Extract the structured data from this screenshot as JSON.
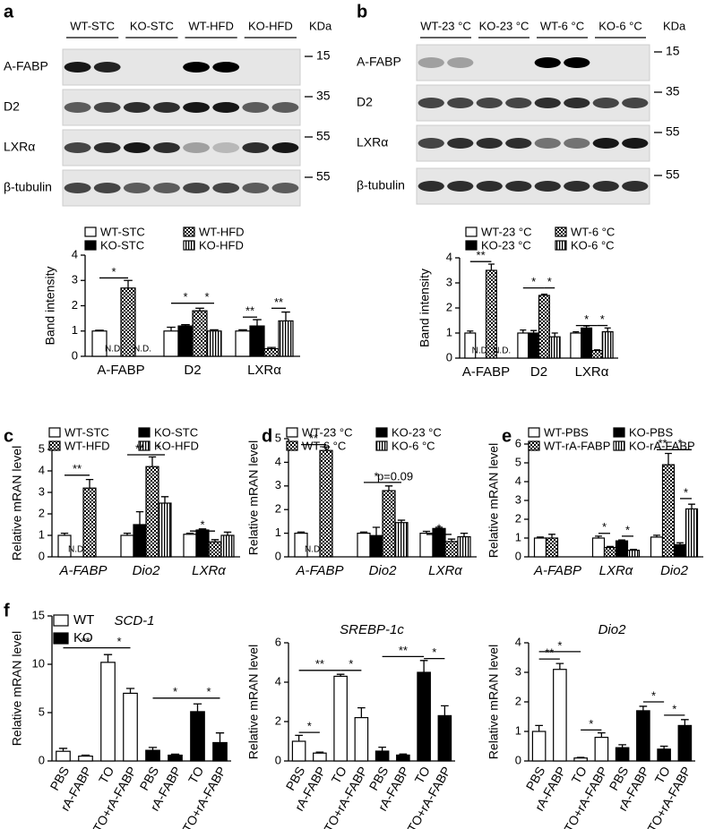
{
  "panel_labels": [
    "a",
    "b",
    "c",
    "d",
    "e",
    "f"
  ],
  "blots": [
    {
      "groups": [
        "WT-STC",
        "KO-STC",
        "WT-HFD",
        "KO-HFD"
      ],
      "unit": "KDa",
      "rows": [
        {
          "name": "A-FABP",
          "marker": 15
        },
        {
          "name": "D2",
          "marker": 35
        },
        {
          "name": "LXRα",
          "marker": 55
        },
        {
          "name": "β-tubulin",
          "marker": 55
        }
      ]
    },
    {
      "groups": [
        "WT-23 °C",
        "KO-23 °C",
        "WT-6 °C",
        "KO-6 °C"
      ],
      "unit": "KDa",
      "rows": [
        {
          "name": "A-FABP",
          "marker": 15
        },
        {
          "name": "D2",
          "marker": 35
        },
        {
          "name": "LXRα",
          "marker": 55
        },
        {
          "name": "β-tubulin",
          "marker": 55
        }
      ]
    }
  ],
  "chart_data": [
    {
      "type": "bar",
      "ylabel": "Band intensity",
      "categories": [
        "A-FABP",
        "D2",
        "LXRα"
      ],
      "ylim": [
        0,
        4
      ],
      "yticks": [
        0,
        1,
        2,
        3,
        4
      ],
      "legend": true,
      "series": [
        {
          "name": "WT-STC",
          "color": "#ffffff",
          "pattern": "none",
          "values": [
            1,
            1,
            1
          ],
          "errors": [
            0.03,
            0.15,
            0.05
          ]
        },
        {
          "name": "KO-STC",
          "color": "#000000",
          "pattern": "none",
          "values": [
            null,
            1.2,
            1.2
          ],
          "errors": [
            null,
            0.05,
            0.25
          ],
          "value_labels": [
            "N.D.",
            null,
            null
          ]
        },
        {
          "name": "WT-HFD",
          "color": "#000000",
          "pattern": "checker",
          "values": [
            2.7,
            1.8,
            0.3
          ],
          "errors": [
            0.3,
            0.1,
            0.05
          ]
        },
        {
          "name": "KO-HFD",
          "color": "#000000",
          "pattern": "stripes",
          "values": [
            null,
            1.0,
            1.4
          ],
          "errors": [
            null,
            0.05,
            0.35
          ],
          "value_labels": [
            "N.D.",
            null,
            null
          ]
        }
      ],
      "annotations": [
        {
          "text": "*"
        },
        {
          "text": "*"
        },
        {
          "text": "*"
        },
        {
          "text": "**"
        },
        {
          "text": "**"
        }
      ]
    },
    {
      "type": "bar",
      "ylabel": "Band intensity",
      "categories": [
        "A-FABP",
        "D2",
        "LXRα"
      ],
      "ylim": [
        0,
        4
      ],
      "yticks": [
        0,
        1,
        2,
        3,
        4
      ],
      "legend": true,
      "series": [
        {
          "name": "WT-23 °C",
          "color": "#ffffff",
          "pattern": "none",
          "values": [
            1,
            1,
            1
          ],
          "errors": [
            0.08,
            0.12,
            0.05
          ]
        },
        {
          "name": "KO-23 °C",
          "color": "#000000",
          "pattern": "none",
          "values": [
            null,
            1.0,
            1.2
          ],
          "errors": [
            null,
            0.1,
            0.08
          ],
          "value_labels": [
            "N.D.",
            null,
            null
          ]
        },
        {
          "name": "WT-6 °C",
          "color": "#000000",
          "pattern": "checker",
          "values": [
            3.5,
            2.5,
            0.3
          ],
          "errors": [
            0.25,
            0.05,
            0.03
          ]
        },
        {
          "name": "KO-6 °C",
          "color": "#000000",
          "pattern": "stripes",
          "values": [
            null,
            0.85,
            1.05
          ],
          "errors": [
            null,
            0.15,
            0.15
          ],
          "value_labels": [
            "N.D.",
            null,
            null
          ]
        }
      ],
      "annotations": [
        {
          "text": "**"
        },
        {
          "text": "*"
        },
        {
          "text": "*"
        },
        {
          "text": "*"
        },
        {
          "text": "*"
        }
      ]
    },
    {
      "type": "bar",
      "ylabel": "Relative mRAN level",
      "categories": [
        "A-FABP",
        "Dio2",
        "LXRα"
      ],
      "ylim": [
        0,
        5
      ],
      "yticks": [
        0,
        1,
        2,
        3,
        4,
        5
      ],
      "legend": true,
      "series": [
        {
          "name": "WT-STC",
          "color": "#ffffff",
          "pattern": "none",
          "values": [
            1,
            1,
            1.05
          ],
          "errors": [
            0.1,
            0.1,
            0.05
          ]
        },
        {
          "name": "KO-STC",
          "color": "#000000",
          "pattern": "none",
          "values": [
            null,
            1.5,
            1.25
          ],
          "errors": [
            null,
            0.6,
            0.05
          ],
          "value_labels": [
            "N.D.",
            null,
            null
          ]
        },
        {
          "name": "WT-HFD",
          "color": "#000000",
          "pattern": "checker",
          "values": [
            3.2,
            4.2,
            0.7
          ],
          "errors": [
            0.4,
            0.45,
            0.1
          ]
        },
        {
          "name": "KO-HFD",
          "color": "#000000",
          "pattern": "stripes",
          "values": [
            null,
            2.5,
            1.0
          ],
          "errors": [
            null,
            0.3,
            0.15
          ]
        }
      ],
      "annotations": [
        {
          "text": "**"
        },
        {
          "text": "**"
        },
        {
          "text": "*"
        },
        {
          "text": "*"
        }
      ]
    },
    {
      "type": "bar",
      "ylabel": "Relative mRAN level",
      "categories": [
        "A-FABP",
        "Dio2",
        "LXRα"
      ],
      "ylim": [
        0,
        5
      ],
      "yticks": [
        0,
        1,
        2,
        3,
        4,
        5
      ],
      "legend": true,
      "series": [
        {
          "name": "WT-23 °C",
          "color": "#ffffff",
          "pattern": "none",
          "values": [
            1,
            1,
            1
          ],
          "errors": [
            0.05,
            0.05,
            0.08
          ]
        },
        {
          "name": "KO-23 °C",
          "color": "#000000",
          "pattern": "none",
          "values": [
            null,
            0.9,
            1.2
          ],
          "errors": [
            null,
            0.35,
            0.05
          ],
          "value_labels": [
            "N.D.",
            null,
            null
          ]
        },
        {
          "name": "WT-6 °C",
          "color": "#000000",
          "pattern": "checker",
          "values": [
            4.5,
            2.8,
            0.65
          ],
          "errors": [
            0.15,
            0.2,
            0.1
          ]
        },
        {
          "name": "KO-6 °C",
          "color": "#000000",
          "pattern": "stripes",
          "values": [
            null,
            1.45,
            0.85
          ],
          "errors": [
            null,
            0.1,
            0.15
          ]
        }
      ],
      "annotations": [
        {
          "text": "**"
        },
        {
          "text": "*"
        },
        {
          "text": "p=0.09"
        },
        {
          "text": "*"
        }
      ]
    },
    {
      "type": "bar",
      "ylabel": "Relative mRAN level",
      "categories": [
        "A-FABP",
        "LXRα",
        "Dio2"
      ],
      "ylim": [
        0,
        6
      ],
      "yticks": [
        0,
        1,
        2,
        3,
        4,
        5,
        6
      ],
      "legend": true,
      "series": [
        {
          "name": "WT-PBS",
          "color": "#ffffff",
          "pattern": "none",
          "values": [
            1,
            1.0,
            1.05
          ],
          "errors": [
            0.05,
            0.1,
            0.1
          ]
        },
        {
          "name": "WT-rA-FABP",
          "color": "#000000",
          "pattern": "checker",
          "values": [
            1.0,
            0.5,
            4.9
          ],
          "errors": [
            0.2,
            0.05,
            0.6
          ]
        },
        {
          "name": "KO-PBS",
          "color": "#000000",
          "pattern": "none",
          "values": [
            null,
            0.85,
            0.65
          ],
          "errors": [
            null,
            0.05,
            0.1
          ]
        },
        {
          "name": "KO-rA-FABP",
          "color": "#000000",
          "pattern": "stripes",
          "values": [
            null,
            0.35,
            2.55
          ],
          "errors": [
            null,
            0.05,
            0.25
          ]
        }
      ],
      "annotations": [
        {
          "text": "*"
        },
        {
          "text": "*"
        },
        {
          "text": "**"
        },
        {
          "text": "*"
        },
        {
          "text": "*"
        }
      ]
    },
    {
      "type": "bar",
      "title": "SCD-1",
      "ylabel": "Relative mRAN level",
      "categories": [
        "PBS",
        "rA-FABP",
        "TO",
        "TO+rA-FABP",
        "PBS",
        "rA-FABP",
        "TO",
        "TO+rA-FABP"
      ],
      "ylim": [
        0,
        15
      ],
      "yticks": [
        0,
        5,
        10,
        15
      ],
      "legend": true,
      "series": [
        {
          "name": "WT",
          "color": "#ffffff",
          "pattern": "none",
          "values": [
            1.0,
            0.5,
            10.2,
            7.0,
            null,
            null,
            null,
            null
          ],
          "errors": [
            0.3,
            0.1,
            0.8,
            0.5,
            null,
            null,
            null,
            null
          ]
        },
        {
          "name": "KO",
          "color": "#000000",
          "pattern": "none",
          "values": [
            null,
            null,
            null,
            null,
            1.1,
            0.6,
            5.1,
            1.9
          ],
          "errors": [
            null,
            null,
            null,
            null,
            0.3,
            0.1,
            0.8,
            1.0
          ]
        }
      ],
      "annotations": [
        {
          "text": "**"
        },
        {
          "text": "*"
        },
        {
          "text": "*"
        },
        {
          "text": "*"
        }
      ]
    },
    {
      "type": "bar",
      "title": "SREBP-1c",
      "ylabel": "Relative mRAN level",
      "categories": [
        "PBS",
        "rA-FABP",
        "TO",
        "TO+rA-FABP",
        "PBS",
        "rA-FABP",
        "TO",
        "TO+rA-FABP"
      ],
      "ylim": [
        0,
        6
      ],
      "yticks": [
        0,
        2,
        4,
        6
      ],
      "legend": false,
      "series": [
        {
          "name": "WT",
          "color": "#ffffff",
          "pattern": "none",
          "values": [
            1.0,
            0.4,
            4.3,
            2.2,
            null,
            null,
            null,
            null
          ],
          "errors": [
            0.3,
            0.05,
            0.1,
            0.5,
            null,
            null,
            null,
            null
          ]
        },
        {
          "name": "KO",
          "color": "#000000",
          "pattern": "none",
          "values": [
            null,
            null,
            null,
            null,
            0.5,
            0.3,
            4.5,
            2.3
          ],
          "errors": [
            null,
            null,
            null,
            null,
            0.2,
            0.05,
            0.6,
            0.5
          ]
        }
      ],
      "annotations": [
        {
          "text": "*"
        },
        {
          "text": "**"
        },
        {
          "text": "*"
        },
        {
          "text": "**"
        },
        {
          "text": "*"
        }
      ]
    },
    {
      "type": "bar",
      "title": "Dio2",
      "ylabel": "Relative mRAN level",
      "categories": [
        "PBS",
        "rA-FABP",
        "TO",
        "TO+rA-FABP",
        "PBS",
        "rA-FABP",
        "TO",
        "TO+rA-FABP"
      ],
      "ylim": [
        0,
        4
      ],
      "yticks": [
        0,
        1,
        2,
        3,
        4
      ],
      "legend": false,
      "series": [
        {
          "name": "WT",
          "color": "#ffffff",
          "pattern": "none",
          "values": [
            1.0,
            3.1,
            0.1,
            0.8,
            null,
            null,
            null,
            null
          ],
          "errors": [
            0.2,
            0.2,
            0.02,
            0.15,
            null,
            null,
            null,
            null
          ]
        },
        {
          "name": "KO",
          "color": "#000000",
          "pattern": "none",
          "values": [
            null,
            null,
            null,
            null,
            0.45,
            1.7,
            0.4,
            1.2
          ],
          "errors": [
            null,
            null,
            null,
            null,
            0.1,
            0.15,
            0.1,
            0.2
          ]
        }
      ],
      "annotations": [
        {
          "text": "*"
        },
        {
          "text": "**"
        },
        {
          "text": "*"
        },
        {
          "text": "*"
        },
        {
          "text": "*"
        }
      ]
    }
  ]
}
